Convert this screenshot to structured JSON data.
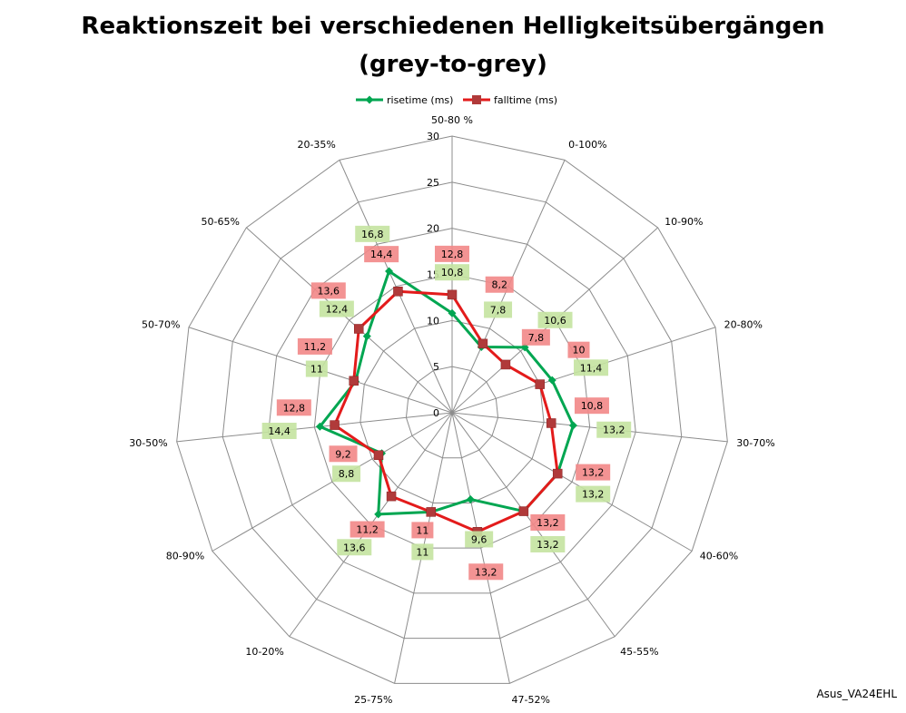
{
  "chart_data": {
    "type": "radar",
    "title_line1": "Reaktionszeit bei verschiedenen Helligkeitsübergängen",
    "title_line2": "(grey-to-grey)",
    "categories": [
      "50-80 %",
      "0-100%",
      "10-90%",
      "20-80%",
      "30-70%",
      "40-60%",
      "45-55%",
      "47-52%",
      "25-75%",
      "10-20%",
      "80-90%",
      "30-50%",
      "50-70%",
      "50-65%",
      "20-35%"
    ],
    "r_range": [
      0,
      30
    ],
    "r_ticks": [
      "0",
      "5",
      "10",
      "15",
      "20",
      "25",
      "30"
    ],
    "grid": true,
    "legend_position": "top",
    "series": [
      {
        "name": "risetime (ms)",
        "color": "#00A651",
        "label_bg": "#C4E3A0",
        "marker": "diamond",
        "values": [
          10.8,
          7.8,
          10.6,
          11.4,
          13.2,
          13.2,
          13.2,
          9.6,
          11,
          13.6,
          8.8,
          14.4,
          11,
          12.4,
          16.8
        ],
        "labels": [
          "10,8",
          "7,8",
          "10,6",
          "11,4",
          "13,2",
          "13,2",
          "13,2",
          "9,6",
          "11",
          "13,6",
          "8,8",
          "14,4",
          "11",
          "12,4",
          "16,8"
        ]
      },
      {
        "name": "falltime (ms)",
        "color": "#E31B1B",
        "label_bg": "#F28787",
        "marker": "square",
        "values": [
          12.8,
          8.2,
          7.8,
          10,
          10.8,
          13.2,
          13.2,
          13.2,
          11,
          11.2,
          9.2,
          12.8,
          11.2,
          13.6,
          14.4
        ],
        "labels": [
          "12,8",
          "8,2",
          "7,8",
          "10",
          "10,8",
          "13,2",
          "13,2",
          "13,2",
          "11",
          "11,2",
          "9,2",
          "12,8",
          "11,2",
          "13,6",
          "14,4"
        ]
      }
    ]
  },
  "footer": {
    "watermark": "Asus_VA24EHL"
  }
}
